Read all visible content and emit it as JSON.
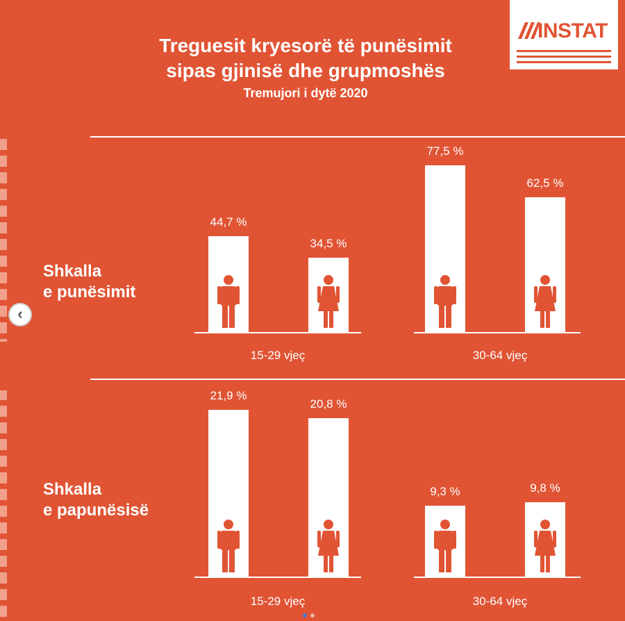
{
  "header": {
    "title_line1": "Treguesit kryesorë të punësimit",
    "title_line2": "sipas gjinisë dhe grupmoshës",
    "subtitle": "Tremujori i dytë 2020",
    "logo_text": "INSTAT"
  },
  "colors": {
    "background": "#E05434",
    "bar": "#ffffff",
    "icon": "#E05434"
  },
  "chart_data": [
    {
      "type": "bar",
      "row_label": [
        "Shkalla",
        "e punësimit"
      ],
      "groups": [
        "15-29 vjeç",
        "30-64 vjeç"
      ],
      "categories": [
        "15-29 vjeç · burra",
        "15-29 vjeç · gra",
        "30-64 vjeç · burra",
        "30-64 vjeç · gra"
      ],
      "value_labels": [
        "44,7 %",
        "34,5 %",
        "77,5 %",
        "62,5 %"
      ],
      "values": [
        44.7,
        34.5,
        77.5,
        62.5
      ],
      "icons": [
        "male-icon",
        "female-icon",
        "male-icon",
        "female-icon"
      ],
      "unit": "%"
    },
    {
      "type": "bar",
      "row_label": [
        "Shkalla",
        "e papunësisë"
      ],
      "groups": [
        "15-29 vjeç",
        "30-64 vjeç"
      ],
      "categories": [
        "15-29 vjeç · burra",
        "15-29 vjeç · gra",
        "30-64 vjeç · burra",
        "30-64 vjeç · gra"
      ],
      "value_labels": [
        "21,9 %",
        "20,8 %",
        "9,3 %",
        "9,8 %"
      ],
      "values": [
        21.9,
        20.8,
        9.3,
        9.8
      ],
      "icons": [
        "male-icon",
        "female-icon",
        "male-icon",
        "female-icon"
      ],
      "unit": "%"
    }
  ]
}
